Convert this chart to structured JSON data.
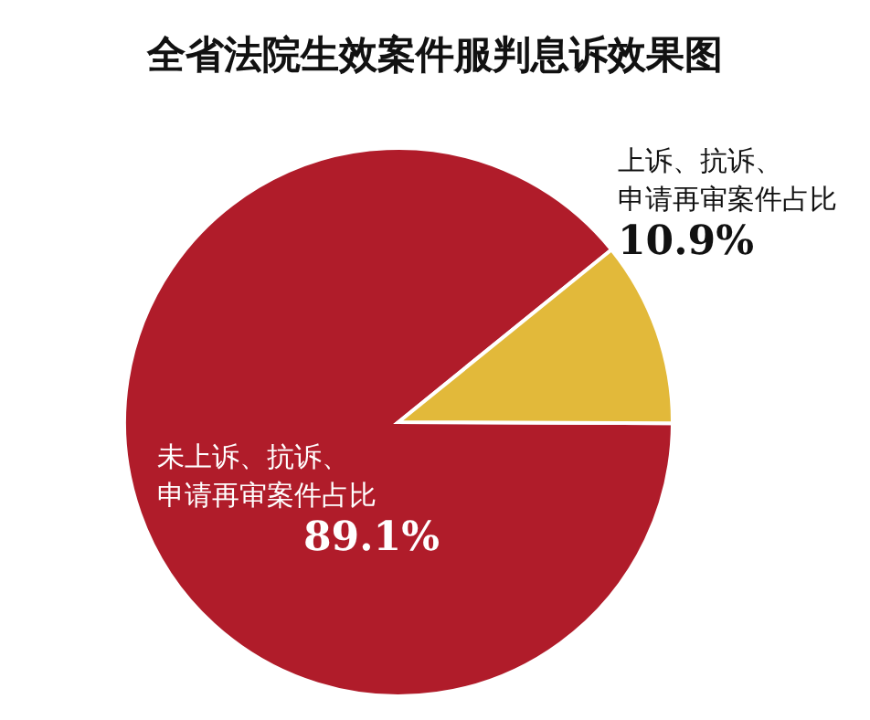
{
  "chart_data": {
    "type": "pie",
    "title": "全省法院生效案件服判息诉效果图",
    "categories": [
      "未上诉、抗诉、申请再审案件占比",
      "上诉、抗诉、申请再审案件占比"
    ],
    "values": [
      89.1,
      10.9
    ],
    "colors": [
      "#b01c2a",
      "#e2b93a"
    ],
    "value_labels": [
      "89.1%",
      "10.9%"
    ],
    "legend": false
  }
}
